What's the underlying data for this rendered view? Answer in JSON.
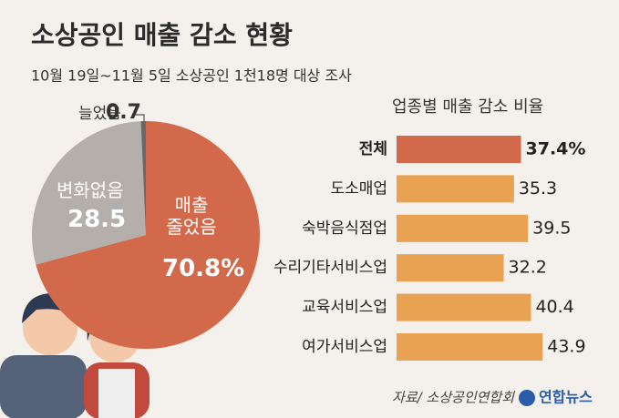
{
  "title": "소상공인 매출 감소 현황",
  "subtitle": "10월 19일~11월 5일 소상공인 1천18명 대상 조사",
  "source": "자료/ 소상공인연합회",
  "logo": "연합뉴스",
  "chart_data": [
    {
      "type": "pie",
      "categories": [
        "매출 줄었음",
        "변화없음",
        "늘었음"
      ],
      "values": [
        70.8,
        28.5,
        0.7
      ],
      "value_labels": [
        "70.8%",
        "28.5",
        "0.7"
      ],
      "colors": [
        "#d2694a",
        "#b4afaa",
        "#6a6866"
      ]
    },
    {
      "type": "bar",
      "title": "업종별 매출 감소 비율",
      "categories": [
        "전체",
        "도소매업",
        "숙박음식점업",
        "수리기타서비스업",
        "교육서비스업",
        "여가서비스업"
      ],
      "values": [
        37.4,
        35.3,
        39.5,
        32.2,
        40.4,
        43.9
      ],
      "value_labels": [
        "37.4%",
        "35.3",
        "39.5",
        "32.2",
        "40.4",
        "43.9"
      ],
      "colors": [
        "#d2694a",
        "#e9a152",
        "#e9a152",
        "#e9a152",
        "#e9a152",
        "#e9a152"
      ]
    }
  ]
}
